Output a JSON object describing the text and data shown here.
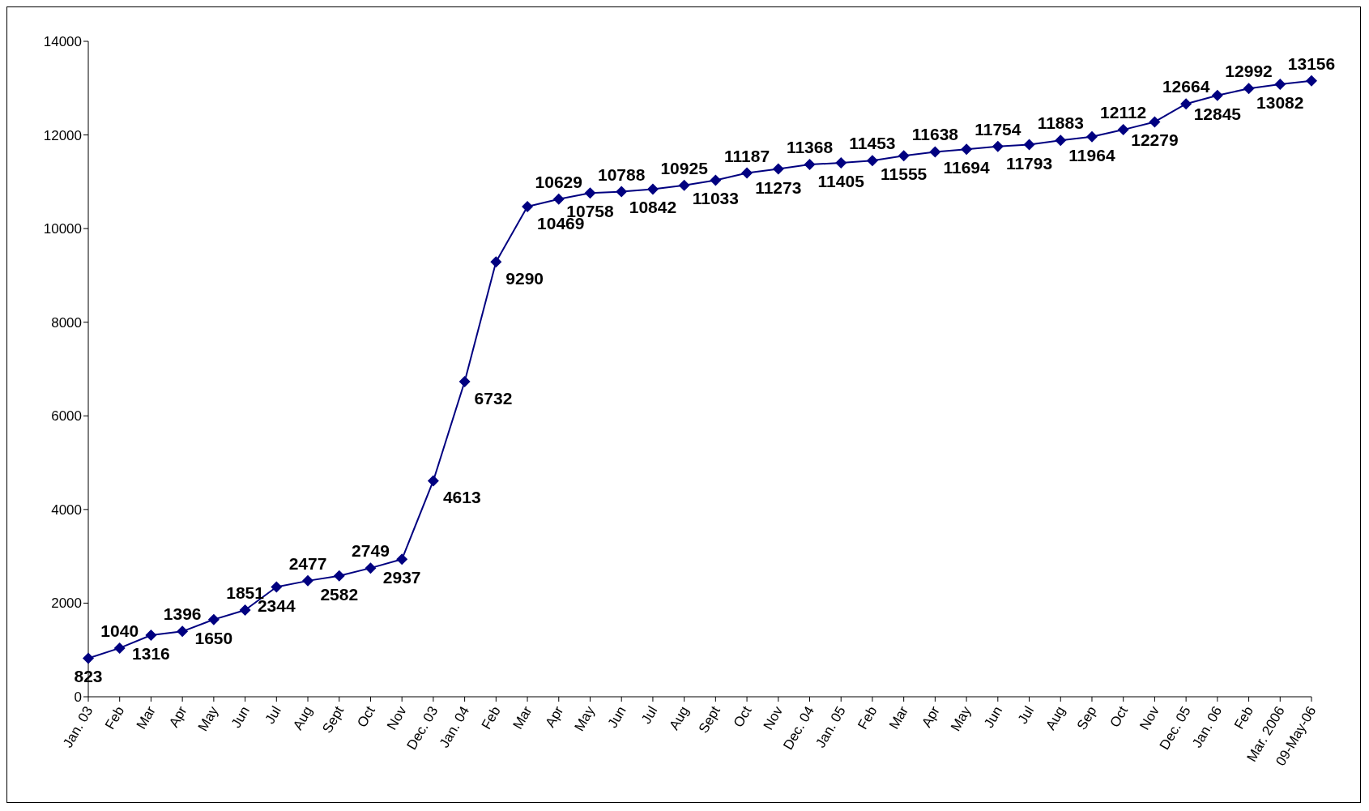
{
  "chart_data": {
    "type": "line",
    "categories": [
      "Jan. 03",
      "Feb",
      "Mar",
      "Apr",
      "May",
      "Jun",
      "Jul",
      "Aug",
      "Sept",
      "Oct",
      "Nov",
      "Dec. 03",
      "Jan. 04",
      "Feb",
      "Mar",
      "Apr",
      "May",
      "Jun",
      "Jul",
      "Aug",
      "Sept",
      "Oct",
      "Nov",
      "Dec. 04",
      "Jan. 05",
      "Feb",
      "Mar",
      "Apr",
      "May",
      "Jun",
      "Jul",
      "Aug",
      "Sep",
      "Oct",
      "Nov",
      "Dec. 05",
      "Jan. 06",
      "Feb",
      "Mar. 2006",
      "09-May-06"
    ],
    "series": [
      {
        "color": "#000080",
        "values": [
          823,
          1040,
          1316,
          1396,
          1650,
          1851,
          2344,
          2477,
          2582,
          2749,
          2937,
          4613,
          6732,
          9290,
          10469,
          10629,
          10758,
          10788,
          10842,
          10925,
          11033,
          11187,
          11273,
          11368,
          11405,
          11453,
          11555,
          11638,
          11694,
          11754,
          11793,
          11883,
          11964,
          12112,
          12279,
          12664,
          12845,
          12992,
          13082,
          13156
        ]
      }
    ],
    "ylim": [
      0,
      14000
    ],
    "yticks": [
      0,
      2000,
      4000,
      6000,
      8000,
      10000,
      12000,
      14000
    ],
    "marker": "diamond",
    "data_labels": true,
    "grid": false,
    "legend": false
  }
}
